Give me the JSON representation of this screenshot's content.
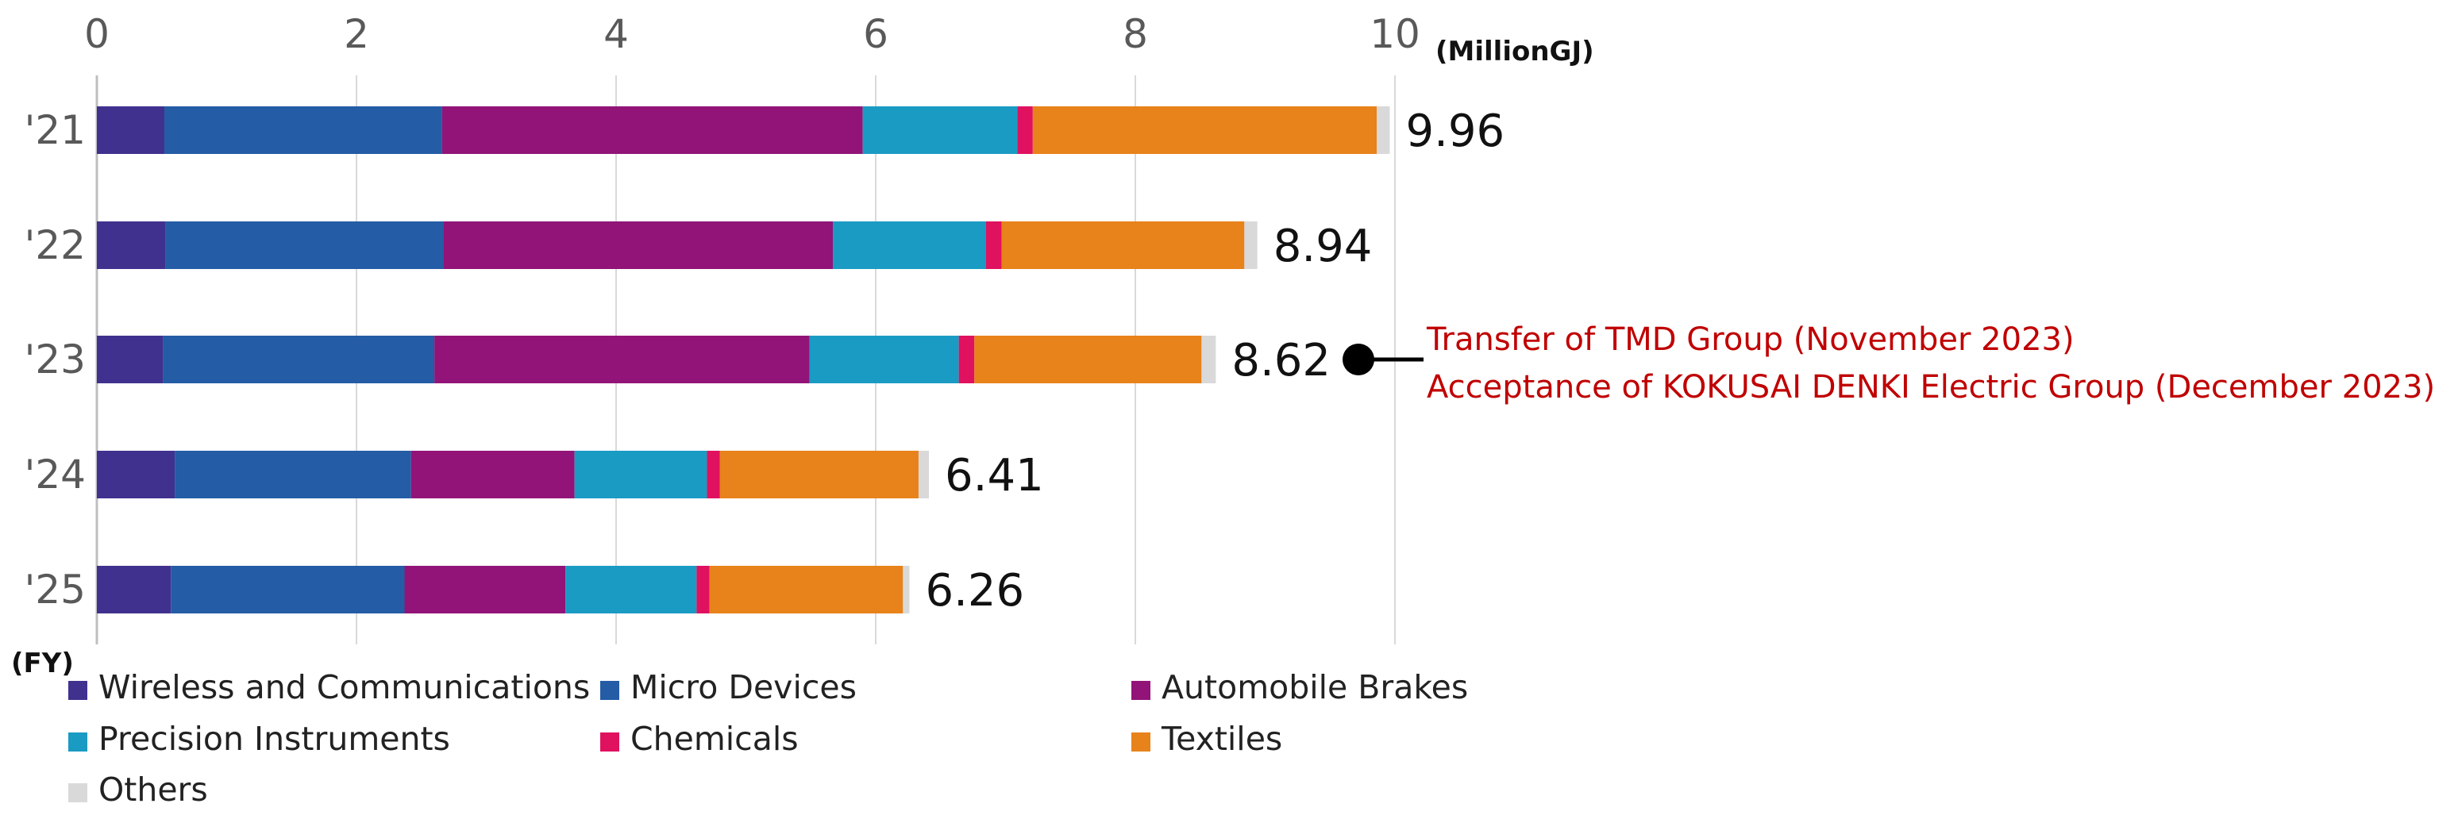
{
  "chart_data": {
    "type": "bar",
    "orientation": "horizontal",
    "stacked": true,
    "categories": [
      "'21",
      "'22",
      "'23",
      "'24",
      "'25"
    ],
    "series": [
      {
        "name": "Wireless and Communications",
        "color": "#40318e",
        "values": [
          0.52,
          0.53,
          0.51,
          0.6,
          0.57
        ]
      },
      {
        "name": "Micro Devices",
        "color": "#245ca6",
        "values": [
          2.14,
          2.14,
          2.09,
          1.82,
          1.8
        ]
      },
      {
        "name": "Automobile Brakes",
        "color": "#921478",
        "values": [
          3.24,
          3.0,
          2.89,
          1.26,
          1.24
        ]
      },
      {
        "name": "Precision Instruments",
        "color": "#1a9bc4",
        "values": [
          1.19,
          1.18,
          1.15,
          1.02,
          1.01
        ]
      },
      {
        "name": "Chemicals",
        "color": "#e0115f",
        "values": [
          0.12,
          0.12,
          0.12,
          0.1,
          0.1
        ]
      },
      {
        "name": "Textiles",
        "color": "#e8821a",
        "values": [
          2.65,
          1.87,
          1.75,
          1.53,
          1.49
        ]
      },
      {
        "name": "Others",
        "color": "#d9d9d9",
        "values": [
          0.1,
          0.1,
          0.11,
          0.08,
          0.05
        ]
      }
    ],
    "totals": [
      "9.96",
      "8.94",
      "8.62",
      "6.41",
      "6.26"
    ],
    "xlim": [
      0,
      10
    ],
    "xticks": [
      "0",
      "2",
      "4",
      "6",
      "8",
      "10"
    ],
    "unit_label": "(MillionGJ)",
    "ylabel": "(FY)",
    "grid": true,
    "legend_position": "bottom",
    "annotation": {
      "category": "'23",
      "lines": [
        "Transfer of TMD Group (November 2023)",
        "Acceptance of KOKUSAI DENKI Electric Group (December 2023)"
      ],
      "color": "#c00000"
    }
  }
}
